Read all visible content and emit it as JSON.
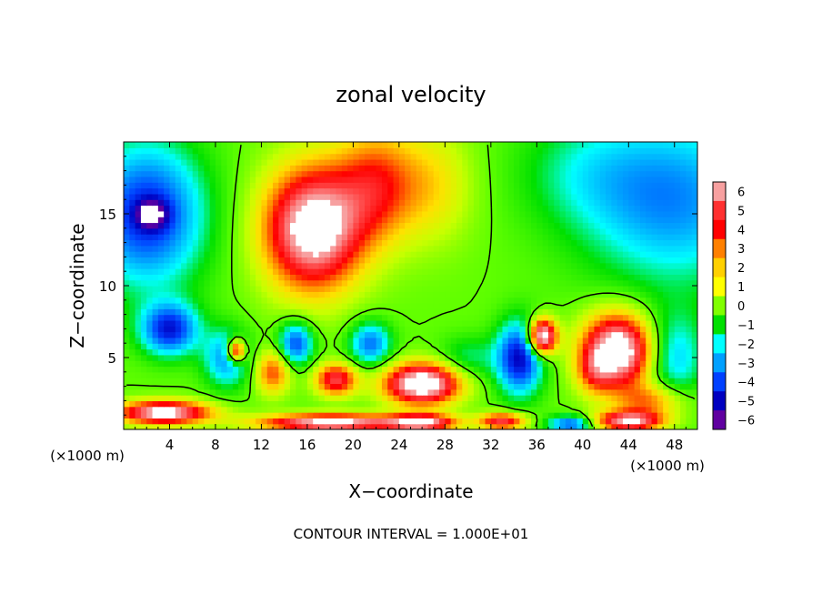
{
  "chart_data": {
    "type": "heatmap",
    "title": "zonal velocity",
    "xlabel": "X−coordinate",
    "ylabel": "Z−coordinate",
    "x_unit": "(×1000 m)",
    "y_unit": "(×1000 m)",
    "xlim": [
      0,
      50
    ],
    "ylim": [
      0,
      20
    ],
    "x_ticks": [
      4,
      8,
      12,
      16,
      20,
      24,
      28,
      32,
      36,
      40,
      44,
      48
    ],
    "x_tick_labels": [
      "4",
      "8",
      "12",
      "16",
      "20",
      "24",
      "28",
      "32",
      "36",
      "40",
      "44",
      "48"
    ],
    "y_ticks": [
      5,
      10,
      15
    ],
    "y_tick_labels": [
      "5",
      "10",
      "15"
    ],
    "colorbar": {
      "min": -6,
      "max": 6,
      "ticks": [
        6,
        5,
        4,
        3,
        2,
        1,
        0,
        -1,
        -2,
        -3,
        -4,
        -5,
        -6
      ],
      "tick_labels": [
        "6",
        "5",
        "4",
        "3",
        "2",
        "1",
        "0",
        "−1",
        "−2",
        "−3",
        "−4",
        "−5",
        "−6"
      ],
      "colors": [
        "#f7a0a0",
        "#ff3030",
        "#ff0000",
        "#ff8000",
        "#ffd000",
        "#ffff00",
        "#80ff00",
        "#00e000",
        "#00ffff",
        "#00a0ff",
        "#0040ff",
        "#0000c0",
        "#6000a0"
      ]
    },
    "contour_interval": 10,
    "contour_level": 0,
    "field_summary": {
      "over_range_regions": [
        {
          "center": [
            16,
            14
          ],
          "value": 8
        },
        {
          "center": [
            26,
            3
          ],
          "value": 7
        },
        {
          "center": [
            43,
            6
          ],
          "value": 7
        },
        {
          "center": [
            36.5,
            6.5
          ],
          "value": 7
        },
        {
          "center": [
            3.5,
            1.2
          ],
          "value": 7
        },
        {
          "center": [
            18,
            0.6
          ],
          "value": 7
        }
      ],
      "under_range_regions": [
        {
          "center": [
            2.5,
            15
          ],
          "value": -7
        }
      ]
    }
  },
  "footer": {
    "contour_interval_text": "CONTOUR INTERVAL = 1.000E+01"
  }
}
